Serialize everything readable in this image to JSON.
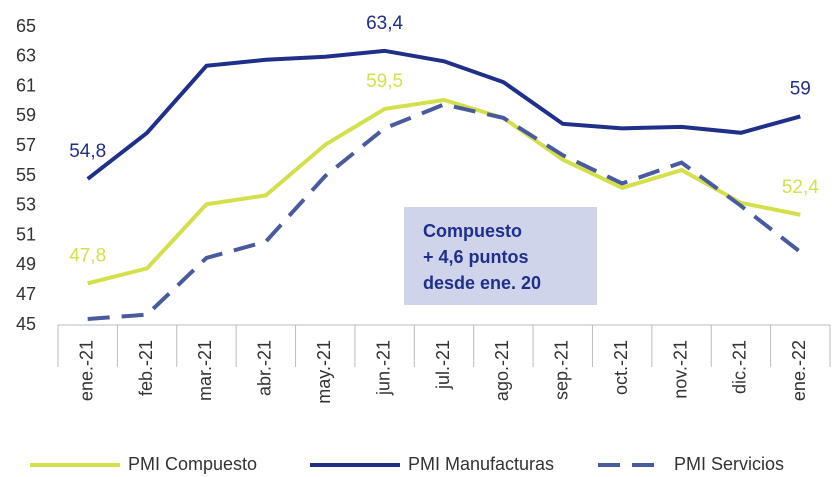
{
  "chart_data": {
    "type": "line",
    "categories": [
      "ene.-21",
      "feb.-21",
      "mar.-21",
      "abr.-21",
      "may.-21",
      "jun.-21",
      "jul.-21",
      "ago.-21",
      "sep.-21",
      "oct.-21",
      "nov.-21",
      "dic.-21",
      "ene.-22"
    ],
    "series": [
      {
        "name": "PMI Compuesto",
        "color": "#d4e04a",
        "line_style": "solid",
        "values": [
          47.8,
          48.8,
          53.1,
          53.7,
          57.1,
          59.5,
          60.1,
          58.9,
          56.1,
          54.2,
          55.4,
          53.2,
          52.4
        ],
        "value_labels": [
          "47,8",
          null,
          null,
          null,
          null,
          "59,5",
          null,
          null,
          null,
          null,
          null,
          null,
          "52,4"
        ]
      },
      {
        "name": "PMI Manufacturas",
        "color": "#1f2f8a",
        "line_style": "solid",
        "values": [
          54.8,
          57.9,
          62.4,
          62.8,
          63.0,
          63.4,
          62.7,
          61.3,
          58.5,
          58.2,
          58.3,
          57.9,
          59.0
        ],
        "value_labels": [
          "54,8",
          null,
          null,
          null,
          null,
          "63,4",
          null,
          null,
          null,
          null,
          null,
          null,
          "59"
        ]
      },
      {
        "name": "PMI Servicios",
        "color": "#4a5a9e",
        "line_style": "dashed",
        "values": [
          45.4,
          45.7,
          49.5,
          50.6,
          55.0,
          58.2,
          59.8,
          58.9,
          56.4,
          54.5,
          55.9,
          53.0,
          49.9
        ]
      }
    ],
    "ylim": [
      45,
      65
    ],
    "yticks": [
      45,
      47,
      49,
      51,
      53,
      55,
      57,
      59,
      61,
      63,
      65
    ],
    "grid": false,
    "legend": "bottom",
    "annotation": [
      "Compuesto",
      "+ 4,6 puntos",
      "desde ene. 20"
    ]
  }
}
